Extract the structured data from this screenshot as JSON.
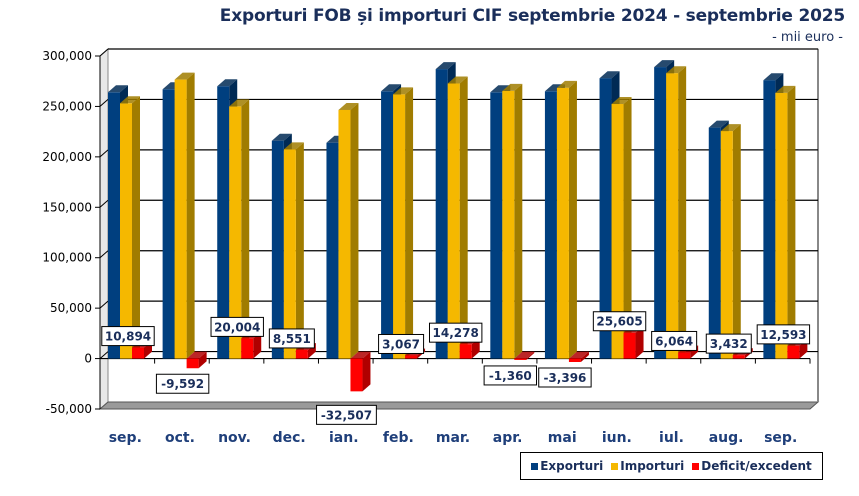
{
  "chart_data": {
    "type": "bar",
    "title": "Exporturi FOB și importuri CIF septembrie 2024 - septembrie 2025",
    "subtitle": "- mii euro -",
    "xlabel": "",
    "ylabel": "",
    "ylim": [
      -50000,
      300000
    ],
    "yticks": [
      300000,
      250000,
      200000,
      150000,
      100000,
      50000,
      0,
      -50000
    ],
    "ytick_labels": [
      "300,000",
      "250,000",
      "200,000",
      "150,000",
      "100,000",
      "50,000",
      "0",
      "-50,000"
    ],
    "grid": true,
    "legend_position": "bottom-right",
    "categories": [
      "sep.",
      "oct.",
      "nov.",
      "dec.",
      "ian.",
      "feb.",
      "mar.",
      "apr.",
      "mai",
      "iun.",
      "iul.",
      "aug.",
      "sep."
    ],
    "series": [
      {
        "name": "Exporturi",
        "color": "#003f7f",
        "side": "#002a55",
        "values": [
          264000,
          267000,
          270000,
          216000,
          214000,
          265000,
          287000,
          264000,
          265000,
          278000,
          289000,
          229000,
          276000
        ]
      },
      {
        "name": "Importuri",
        "color": "#f5b800",
        "side": "#a07c00",
        "values": [
          253106,
          276592,
          249996,
          207449,
          246507,
          261933,
          272722,
          265360,
          268396,
          252395,
          282936,
          225568,
          263407
        ]
      },
      {
        "name": "Deficit/excedent",
        "color": "#ff0000",
        "side": "#b00000",
        "values": [
          10894,
          -9592,
          20004,
          8551,
          -32507,
          3067,
          14278,
          -1360,
          -3396,
          25605,
          6064,
          3432,
          12593
        ]
      }
    ],
    "data_labels": [
      "10,894",
      "-9,592",
      "20,004",
      "8,551",
      "-32,507",
      "3,067",
      "14,278",
      "-1,360",
      "-3,396",
      "25,605",
      "6,064",
      "3,432",
      "12,593"
    ]
  }
}
